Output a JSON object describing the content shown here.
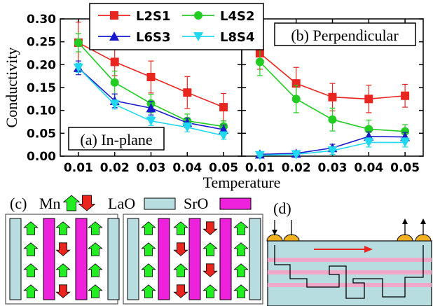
{
  "chart_data": [
    {
      "type": "line",
      "title": "(a) In-plane",
      "xlabel": "Temperature",
      "ylabel": "Conductivity",
      "x": [
        0.01,
        0.02,
        0.03,
        0.04,
        0.05
      ],
      "x_ticks": [
        "0.01",
        "0.02",
        "0.03",
        "0.04",
        "0.05"
      ],
      "y_ticks": [
        "0.00",
        "0.05",
        "0.10",
        "0.15",
        "0.20",
        "0.25",
        "0.30"
      ],
      "ylim": [
        0,
        0.3
      ],
      "series": [
        {
          "name": "L2S1",
          "color": "#e8251f",
          "marker": "square",
          "values": [
            0.248,
            0.206,
            0.173,
            0.139,
            0.107
          ],
          "errors": [
            0.045,
            0.03,
            0.035,
            0.035,
            0.03
          ]
        },
        {
          "name": "L4S2",
          "color": "#22cc22",
          "marker": "circle",
          "values": [
            0.248,
            0.161,
            0.115,
            0.077,
            0.065
          ],
          "errors": [
            0.02,
            0.025,
            0.02,
            0.015,
            0.012
          ]
        },
        {
          "name": "L6S3",
          "color": "#1a1acc",
          "marker": "triangle-up",
          "values": [
            0.193,
            0.121,
            0.105,
            0.073,
            0.058
          ],
          "errors": [
            0.015,
            0.015,
            0.015,
            0.01,
            0.01
          ]
        },
        {
          "name": "L8S4",
          "color": "#22d8f0",
          "marker": "triangle-down",
          "values": [
            0.193,
            0.113,
            0.077,
            0.063,
            0.045
          ],
          "errors": [
            0.01,
            0.01,
            0.01,
            0.01,
            0.008
          ]
        }
      ]
    },
    {
      "type": "line",
      "title": "(b) Perpendicular",
      "xlabel": "Temperature",
      "ylabel": "",
      "x": [
        0.01,
        0.02,
        0.03,
        0.04,
        0.05
      ],
      "x_ticks": [
        "0.01",
        "0.02",
        "0.03",
        "0.04",
        "0.05"
      ],
      "ylim": [
        0,
        0.3
      ],
      "series": [
        {
          "name": "L2S1",
          "color": "#e8251f",
          "marker": "square",
          "values": [
            0.225,
            0.159,
            0.129,
            0.125,
            0.132
          ],
          "errors": [
            0.035,
            0.035,
            0.03,
            0.03,
            0.025
          ]
        },
        {
          "name": "L4S2",
          "color": "#22cc22",
          "marker": "circle",
          "values": [
            0.206,
            0.125,
            0.08,
            0.059,
            0.054
          ],
          "errors": [
            0.03,
            0.03,
            0.025,
            0.02,
            0.015
          ]
        },
        {
          "name": "L6S3",
          "color": "#1a1acc",
          "marker": "triangle-up",
          "values": [
            0.004,
            0.006,
            0.018,
            0.043,
            0.042
          ],
          "errors": [
            0.003,
            0.004,
            0.008,
            0.01,
            0.01
          ]
        },
        {
          "name": "L8S4",
          "color": "#22d8f0",
          "marker": "triangle-down",
          "values": [
            0.002,
            0.004,
            0.012,
            0.03,
            0.03
          ],
          "errors": [
            0.002,
            0.003,
            0.008,
            0.01,
            0.01
          ]
        }
      ]
    }
  ],
  "legend": {
    "entries": [
      "L2S1",
      "L4S2",
      "L6S3",
      "L8S4"
    ]
  },
  "colors": {
    "mn_up": "#22ee22",
    "mn_down": "#e8251f",
    "lao": "#b8dde0",
    "sro": "#ee22dd",
    "panel_d_bg": "#b8dde0",
    "panel_d_stripe": "#f0a8c8",
    "panel_d_contact": "#f0b020",
    "panel_d_arrow": "#e8251f"
  },
  "panel_c": {
    "label": "(c)",
    "mn_label": "Mn",
    "lao_label": "LaO",
    "sro_label": "SrO",
    "structures": [
      {
        "layers": [
          "LaO",
          "Mn",
          "SrO",
          "Mn",
          "SrO",
          "Mn",
          "LaO"
        ],
        "spins": [
          [],
          [
            "up",
            "up",
            "up",
            "up"
          ],
          [],
          [
            "up",
            "down",
            "up",
            "down"
          ],
          [],
          [
            "up",
            "up",
            "up",
            "up"
          ],
          []
        ]
      },
      {
        "layers": [
          "LaO",
          "Mn",
          "SrO",
          "Mn",
          "SrO",
          "Mn",
          "LaO"
        ],
        "spins": [
          [],
          [
            "up",
            "up",
            "up",
            "up"
          ],
          [],
          [
            "up",
            "down",
            "up",
            "down"
          ],
          [],
          [
            "down",
            "up",
            "down",
            "up"
          ],
          []
        ]
      }
    ]
  },
  "panel_d": {
    "label": "(d)"
  }
}
